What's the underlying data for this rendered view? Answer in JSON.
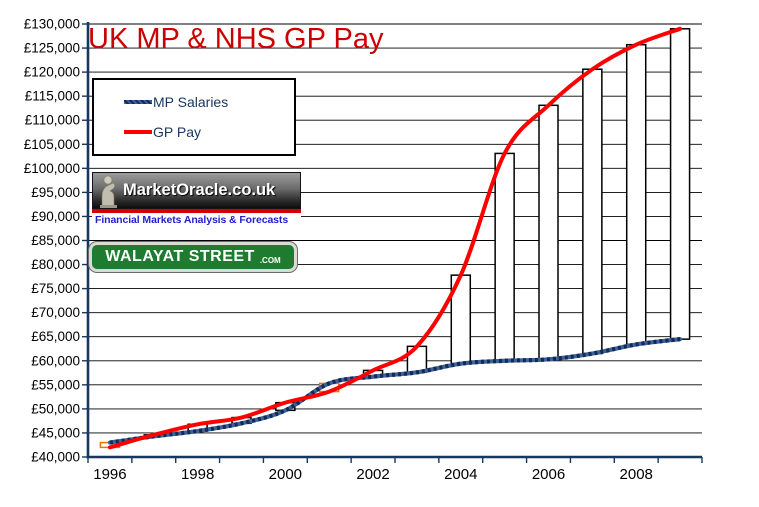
{
  "title": {
    "text": "UK MP & NHS GP Pay",
    "color": "#CC0000"
  },
  "legend": {
    "items": [
      {
        "label": "MP Salaries",
        "color": "#1F3864"
      },
      {
        "label": "GP Pay",
        "color": "#FF0000"
      }
    ]
  },
  "branding": {
    "market_oracle": {
      "name": "MarketOracle.co.uk",
      "tagline": "Financial Markets Analysis & Forecasts",
      "stripe_color": "#D40000",
      "tagline_color": "#2121CC"
    },
    "walayat_street": {
      "name": "WALAYAT STREET",
      "suffix": ".COM",
      "sign_color": "#1F7B2F"
    }
  },
  "chart_data": {
    "type": "line",
    "title": "UK MP & NHS GP Pay",
    "categories": [
      1996,
      1997,
      1998,
      1999,
      2000,
      2001,
      2002,
      2003,
      2004,
      2005,
      2006,
      2007,
      2008,
      2009
    ],
    "series": [
      {
        "name": "MP Salaries",
        "color": "#3A62A0",
        "texture_color": "#16294E",
        "values": [
          43000,
          44300,
          45400,
          47000,
          49700,
          55300,
          56700,
          57600,
          59400,
          60000,
          60300,
          61500,
          63400,
          64500
        ]
      },
      {
        "name": "GP Pay",
        "color": "#FF0000",
        "values": [
          42000,
          44600,
          46800,
          48200,
          51300,
          53600,
          58000,
          63000,
          77800,
          103100,
          113100,
          120600,
          125700,
          129000
        ]
      }
    ],
    "gap_bars": {
      "fill": "#FFFFFF",
      "up_border": "#000000",
      "down_border": "#E8720C",
      "note": "white columns span the gap between MP salary and GP pay each year; orange border where GP pay is below MP salary (1996, 2001)"
    },
    "ylim": [
      40000,
      130000
    ],
    "y_step": 5000,
    "y_tick_labels": [
      "£40,000",
      "£45,000",
      "£50,000",
      "£55,000",
      "£60,000",
      "£65,000",
      "£70,000",
      "£75,000",
      "£80,000",
      "£85,000",
      "£90,000",
      "£95,000",
      "£100,000",
      "£105,000",
      "£110,000",
      "£115,000",
      "£120,000",
      "£125,000",
      "£130,000"
    ],
    "x_tick_labels": [
      "1996",
      "1998",
      "2000",
      "2002",
      "2004",
      "2006",
      "2008"
    ],
    "x_label_every": 2,
    "grid": "horizontal-black",
    "legend_position": "top-left-inside",
    "axis_color": "#17375E",
    "grid_color": "#000000",
    "label_color": "#000000"
  }
}
